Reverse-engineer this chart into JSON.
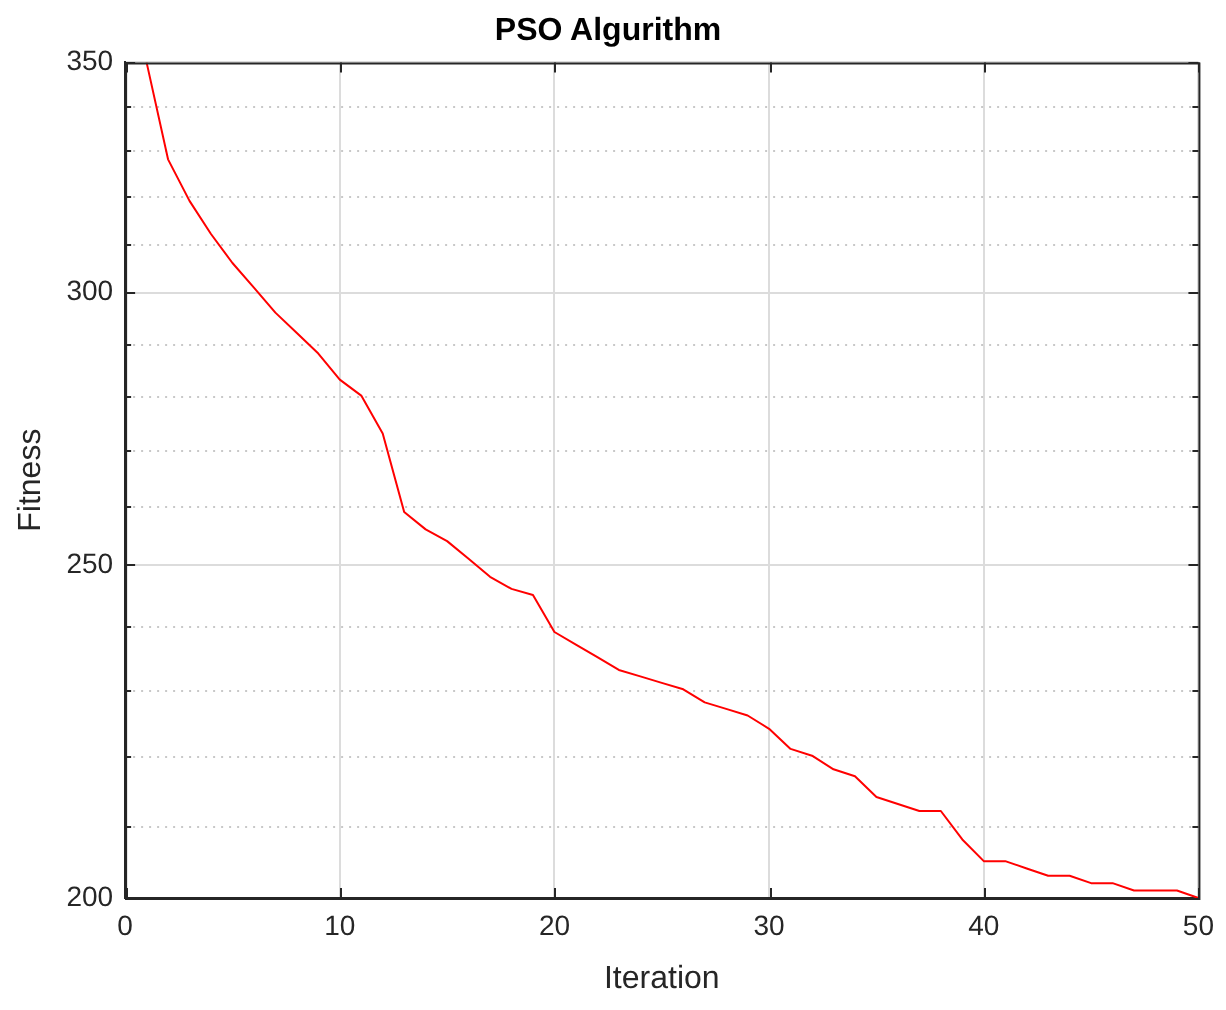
{
  "chart_data": {
    "type": "line",
    "title": "PSO Algurithm",
    "xlabel": "Iteration",
    "ylabel": "Fitness",
    "x": [
      1,
      2,
      3,
      4,
      5,
      6,
      7,
      8,
      9,
      10,
      11,
      12,
      13,
      14,
      15,
      16,
      17,
      18,
      19,
      20,
      21,
      22,
      23,
      24,
      25,
      26,
      27,
      28,
      29,
      30,
      31,
      32,
      33,
      34,
      35,
      36,
      37,
      38,
      39,
      40,
      41,
      42,
      43,
      44,
      45,
      46,
      47,
      48,
      49,
      50
    ],
    "series": [
      {
        "color": "#ff0000",
        "values": [
          350,
          328,
          319,
          312,
          306,
          301,
          296,
          292,
          288,
          283,
          280,
          273,
          259,
          256,
          254,
          251,
          248,
          246,
          245,
          239,
          237,
          235,
          233,
          232,
          231,
          230,
          228,
          227,
          226,
          224,
          221,
          220,
          218,
          217,
          214,
          213,
          212,
          212,
          208,
          205,
          205,
          204,
          203,
          203,
          202,
          202,
          201,
          201,
          201,
          200
        ]
      }
    ],
    "xlim": [
      0,
      50
    ],
    "xticks": [
      0,
      10,
      20,
      30,
      40,
      50
    ],
    "ylim": [
      200,
      350
    ],
    "yticks": [
      200,
      {
        "value": 210,
        "label": null
      },
      {
        "value": 220,
        "label": null
      },
      {
        "value": 230,
        "label": null
      },
      {
        "value": 240,
        "label": null
      },
      250,
      {
        "value": 260,
        "label": null
      },
      {
        "value": 270,
        "label": null
      },
      {
        "value": 280,
        "label": null
      },
      {
        "value": 290,
        "label": null
      },
      300,
      {
        "value": 310,
        "label": null
      },
      {
        "value": 320,
        "label": null
      },
      {
        "value": 330,
        "label": null
      },
      {
        "value": 340,
        "label": null
      },
      350
    ],
    "log": "y",
    "grid": true,
    "marker": "none",
    "line_style": "solid"
  }
}
